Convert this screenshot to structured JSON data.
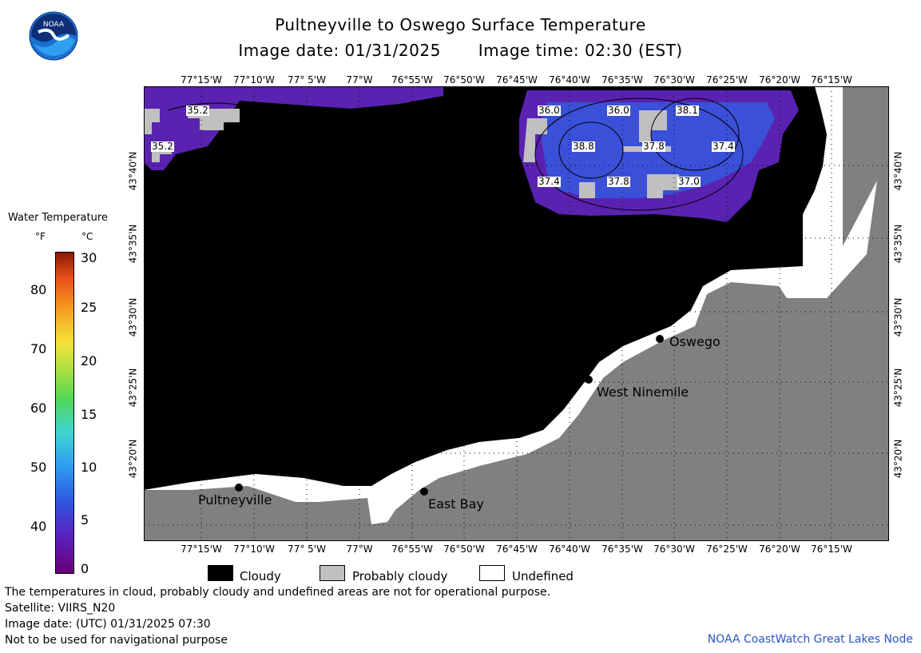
{
  "header": {
    "title": "Pultneyville to Oswego Surface Temperature",
    "image_date_label": "Image date: 01/31/2025",
    "image_time_label": "Image time: 02:30 (EST)"
  },
  "logo": {
    "text": "NOAA"
  },
  "legend": {
    "title": "Water Temperature",
    "unit_f": "°F",
    "unit_c": "°C",
    "f_ticks": [
      "80",
      "70",
      "60",
      "50",
      "40"
    ],
    "c_ticks": [
      "30",
      "25",
      "20",
      "15",
      "10",
      "5",
      "0"
    ]
  },
  "map": {
    "lon_labels": [
      "77°15'W",
      "77°10'W",
      "77° 5'W",
      "77°W",
      "76°55'W",
      "76°50'W",
      "76°45'W",
      "76°40'W",
      "76°35'W",
      "76°30'W",
      "76°25'W",
      "76°20'W",
      "76°15'W"
    ],
    "lat_labels": [
      "43°40'N",
      "43°35'N",
      "43°30'N",
      "43°25'N",
      "43°20'N"
    ],
    "cities": [
      "Pultneyville",
      "East Bay",
      "West Ninemile",
      "Oswego"
    ],
    "temperature_labels": [
      "35.2",
      "35.2",
      "36.0",
      "36.0",
      "38.1",
      "38.8",
      "37.8",
      "37.4",
      "37.4",
      "37.8",
      "37.0"
    ]
  },
  "key": {
    "cloudy": "Cloudy",
    "probably_cloudy": "Probably cloudy",
    "undefined": "Undefined"
  },
  "footer": {
    "line1": "The temperatures in cloud, probably cloudy and undefined areas are not for operational purpose.",
    "line2": "Satellite: VIIRS_N20",
    "line3": "Image date: (UTC) 01/31/2025  07:30",
    "line4": "Not to be used for navigational purpose",
    "credit": "NOAA CoastWatch Great Lakes Node"
  },
  "colors": {
    "land": "#808080",
    "cloudy": "#000000",
    "probably_cloudy": "#c0c0c0",
    "undefined": "#ffffff",
    "water_warm": "#3a50d8",
    "water_cold": "#5a22b0",
    "credit": "#2a55c8"
  }
}
